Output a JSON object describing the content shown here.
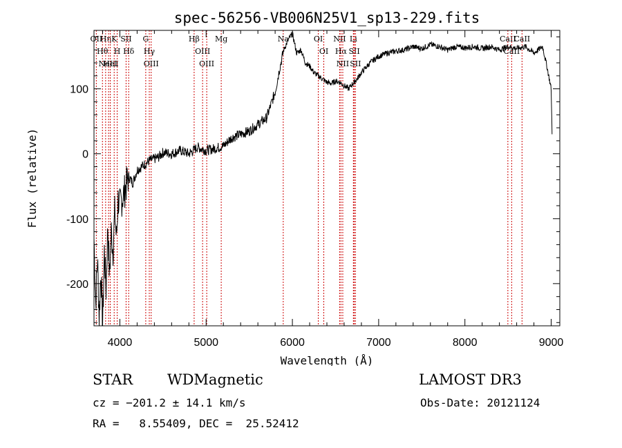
{
  "chart_data": {
    "type": "line",
    "title": "spec-56256-VB006N25V1_sp13-229.fits",
    "xlabel": "Wavelength (Å)",
    "ylabel": "Flux (relative)",
    "xlim": [
      3700,
      9100
    ],
    "ylim": [
      -265,
      190
    ],
    "xticks": [
      4000,
      5000,
      6000,
      7000,
      8000,
      9000
    ],
    "yticks": [
      -200,
      -100,
      0,
      100
    ],
    "series": [
      {
        "name": "flux",
        "x": [
          3700,
          3720,
          3740,
          3760,
          3780,
          3800,
          3820,
          3840,
          3860,
          3880,
          3900,
          3920,
          3940,
          3960,
          3980,
          4000,
          4050,
          4100,
          4150,
          4200,
          4250,
          4300,
          4350,
          4400,
          4450,
          4500,
          4600,
          4700,
          4800,
          4900,
          5000,
          5100,
          5200,
          5300,
          5400,
          5500,
          5600,
          5700,
          5750,
          5800,
          5850,
          5900,
          5950,
          6000,
          6050,
          6100,
          6150,
          6200,
          6250,
          6300,
          6350,
          6400,
          6450,
          6500,
          6550,
          6600,
          6650,
          6700,
          6750,
          6800,
          6900,
          7000,
          7100,
          7200,
          7300,
          7400,
          7500,
          7600,
          7700,
          7800,
          7900,
          8000,
          8100,
          8200,
          8300,
          8400,
          8500,
          8600,
          8700,
          8800,
          8900,
          8950,
          9000,
          9010
        ],
        "y": [
          -130,
          -230,
          -160,
          -250,
          -180,
          -265,
          -150,
          -210,
          -110,
          -190,
          -120,
          -150,
          -90,
          -130,
          -70,
          -80,
          -60,
          -35,
          -45,
          -25,
          -20,
          -15,
          -10,
          -8,
          -5,
          2,
          0,
          5,
          0,
          10,
          5,
          8,
          12,
          25,
          30,
          35,
          45,
          55,
          75,
          95,
          130,
          160,
          175,
          185,
          155,
          160,
          140,
          135,
          125,
          120,
          115,
          110,
          108,
          112,
          110,
          105,
          100,
          108,
          115,
          125,
          140,
          150,
          155,
          158,
          160,
          165,
          162,
          168,
          165,
          160,
          165,
          163,
          165,
          162,
          165,
          160,
          165,
          162,
          165,
          155,
          165,
          135,
          100,
          30
        ]
      }
    ],
    "emission_lines": [
      {
        "x": 3727,
        "labels": [
          "OII"
        ]
      },
      {
        "x": 3798,
        "labels": [
          "Hθ"
        ]
      },
      {
        "x": 3835,
        "labels": [
          "Hη"
        ]
      },
      {
        "x": 3869,
        "labels": [
          "NeIII"
        ]
      },
      {
        "x": 3889,
        "labels": [
          "HeI"
        ]
      },
      {
        "x": 3934,
        "labels": [
          "K"
        ]
      },
      {
        "x": 3969,
        "labels": [
          "H"
        ]
      },
      {
        "x": 4072,
        "labels": [
          "SII"
        ]
      },
      {
        "x": 4102,
        "labels": [
          "Hδ"
        ]
      },
      {
        "x": 4300,
        "labels": [
          "G"
        ]
      },
      {
        "x": 4341,
        "labels": [
          "Hγ"
        ]
      },
      {
        "x": 4363,
        "labels": [
          "OIII"
        ]
      },
      {
        "x": 4861,
        "labels": [
          "Hβ"
        ]
      },
      {
        "x": 4959,
        "labels": [
          "OIII"
        ]
      },
      {
        "x": 5007,
        "labels": [
          "OIII"
        ]
      },
      {
        "x": 5175,
        "labels": [
          "Mg"
        ]
      },
      {
        "x": 5894,
        "labels": [
          "Na"
        ]
      },
      {
        "x": 6300,
        "labels": [
          "OI"
        ]
      },
      {
        "x": 6364,
        "labels": [
          "OI"
        ]
      },
      {
        "x": 6548,
        "labels": [
          "NII"
        ]
      },
      {
        "x": 6563,
        "labels": [
          "Hα"
        ]
      },
      {
        "x": 6584,
        "labels": [
          "NII"
        ]
      },
      {
        "x": 6707,
        "labels": [
          "Li"
        ]
      },
      {
        "x": 6717,
        "labels": [
          "SII"
        ]
      },
      {
        "x": 6731,
        "labels": [
          "SII"
        ]
      },
      {
        "x": 8498,
        "labels": [
          "CaII"
        ]
      },
      {
        "x": 8542,
        "labels": [
          "CaII"
        ]
      },
      {
        "x": 8662,
        "labels": [
          "CaII"
        ]
      }
    ]
  },
  "info": {
    "class": "STAR",
    "subclass": "WDMagnetic",
    "survey": "LAMOST DR3",
    "cz": "cz = −201.2 ± 14.1 km/s",
    "obs_date": "Obs-Date: 20121124",
    "coords": "RA =   8.55409, DEC =  25.52412"
  },
  "colors": {
    "line": "#000000",
    "emission": "#cc0000",
    "axis": "#000000"
  }
}
